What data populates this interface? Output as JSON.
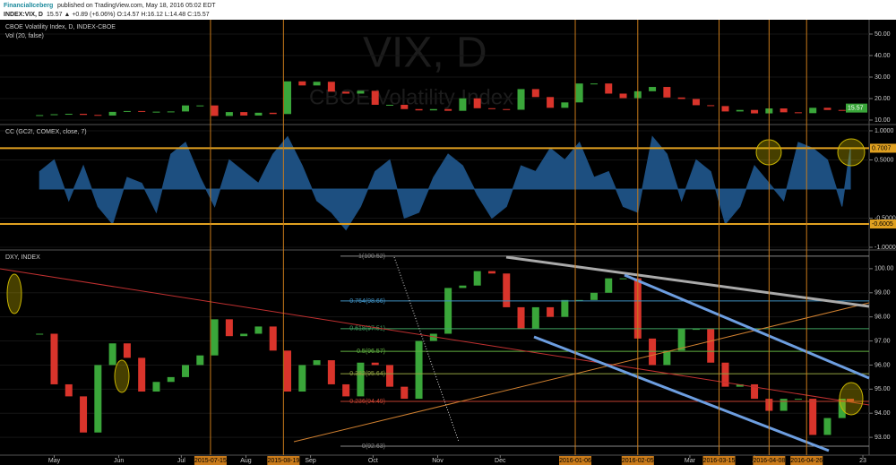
{
  "header": {
    "brand": "FinancialIceberg",
    "published": "published on TradingView.com, May 18, 2016 05:02 EDT",
    "symbol": "INDEX:VIX, D",
    "quote": "15.57 ▲ +0.89 (+6.06%) O:14.57 H:16.12 L:14.48 C:15.57"
  },
  "chart_data": [
    {
      "type": "candlestick",
      "title": "CBOE Volatility Index, D, INDEX-CBOE",
      "subtitle": "Vol (20, false)",
      "watermark": "VIX, D",
      "watermark_subtitle": "CBOE Volatility Index",
      "x": [
        "2015-04-24",
        "2015-05-01",
        "2015-05-08",
        "2015-05-15",
        "2015-05-22",
        "2015-05-29",
        "2015-06-05",
        "2015-06-12",
        "2015-06-19",
        "2015-06-26",
        "2015-07-03",
        "2015-07-10",
        "2015-07-17",
        "2015-07-24",
        "2015-07-31",
        "2015-08-07",
        "2015-08-14",
        "2015-08-21",
        "2015-08-28",
        "2015-09-04",
        "2015-09-11",
        "2015-09-18",
        "2015-09-25",
        "2015-10-02",
        "2015-10-09",
        "2015-10-16",
        "2015-10-23",
        "2015-10-30",
        "2015-11-06",
        "2015-11-13",
        "2015-11-20",
        "2015-11-27",
        "2015-12-04",
        "2015-12-11",
        "2015-12-18",
        "2015-12-25",
        "2016-01-01",
        "2016-01-08",
        "2016-01-15",
        "2016-01-22",
        "2016-01-29",
        "2016-02-05",
        "2016-02-12",
        "2016-02-19",
        "2016-02-26",
        "2016-03-04",
        "2016-03-11",
        "2016-03-18",
        "2016-03-25",
        "2016-04-01",
        "2016-04-08",
        "2016-04-15",
        "2016-04-22",
        "2016-04-29",
        "2016-05-06",
        "2016-05-13",
        "2016-05-17"
      ],
      "series": [
        {
          "name": "INDEX:VIX",
          "up_color": "#3aa63a",
          "down_color": "#d9342b",
          "values": [
            12.3,
            12.7,
            12.9,
            12.4,
            12.1,
            13.8,
            14.2,
            13.8,
            13.9,
            14.0,
            16.8,
            16.8,
            11.9,
            13.7,
            12.1,
            13.4,
            12.8,
            28.0,
            26.1,
            27.8,
            23.2,
            22.3,
            23.6,
            17.1,
            17.1,
            15.1,
            14.5,
            15.1,
            14.3,
            20.1,
            15.5,
            15.1,
            14.8,
            24.4,
            20.7,
            15.7,
            18.2,
            27.0,
            27.0,
            22.3,
            20.2,
            23.4,
            25.4,
            20.5,
            19.8,
            16.9,
            16.5,
            14.0,
            14.7,
            13.1,
            15.4,
            13.6,
            13.2,
            15.7,
            14.7,
            14.4,
            15.57
          ]
        }
      ],
      "ylim": [
        8.33,
        56.67
      ],
      "yticks": [
        {
          "value": 10,
          "label": "10.00"
        },
        {
          "value": 20,
          "label": "20.00"
        },
        {
          "value": 30,
          "label": "30.00"
        },
        {
          "value": 40,
          "label": "40.00"
        },
        {
          "value": 50,
          "label": "50.00"
        }
      ]
    },
    {
      "type": "area",
      "title": "CC (GC2!, COMEX, close, 7)",
      "series": [
        {
          "name": "CC",
          "color": "#1d4f80",
          "values": [
            0.3,
            0.5,
            -0.2,
            0.4,
            -0.3,
            -0.6,
            0.2,
            0.1,
            -0.4,
            0.6,
            0.8,
            0.2,
            -0.3,
            0.5,
            0.3,
            0.1,
            0.6,
            0.9,
            0.4,
            -0.2,
            -0.4,
            -0.7,
            -0.3,
            0.3,
            0.5,
            -0.5,
            -0.4,
            0.2,
            0.6,
            0.4,
            -0.1,
            -0.5,
            -0.3,
            0.4,
            0.3,
            0.7,
            0.5,
            0.8,
            0.2,
            0.3,
            -0.3,
            -0.4,
            0.9,
            0.6,
            -0.2,
            0.5,
            0.3,
            -0.6,
            -0.3,
            0.4,
            0.1,
            -0.2,
            0.8,
            0.7,
            0.5,
            -0.3,
            0.7007
          ]
        }
      ],
      "hlines": [
        0.7007,
        -0.6005
      ],
      "hline_color": "#e0a020",
      "ylim": [
        -1.031,
        1.092
      ],
      "yticks": [
        {
          "value": 1,
          "label": "1.0000"
        },
        {
          "value": 0.5,
          "label": "0.5000"
        },
        {
          "value": -0.5,
          "label": "-0.5000"
        },
        {
          "value": -1,
          "label": "-1.0000"
        }
      ]
    },
    {
      "type": "candlestick",
      "title": "DXY, INDEX",
      "series": [
        {
          "name": "DXY",
          "up_color": "#3aa63a",
          "down_color": "#d9342b",
          "values": [
            97.3,
            95.2,
            94.7,
            93.2,
            96.0,
            96.9,
            96.3,
            94.9,
            95.3,
            95.5,
            96.0,
            96.4,
            97.9,
            97.2,
            97.3,
            97.6,
            96.6,
            94.9,
            96.0,
            96.2,
            95.2,
            94.7,
            96.1,
            96.0,
            95.1,
            94.6,
            97.0,
            97.3,
            99.2,
            99.3,
            99.9,
            99.8,
            98.4,
            97.5,
            98.4,
            98.0,
            98.7,
            98.7,
            99.0,
            99.6,
            99.6,
            97.1,
            96.0,
            96.6,
            97.5,
            97.5,
            96.1,
            95.1,
            95.2,
            94.6,
            94.1,
            94.6,
            94.6,
            93.1,
            93.8,
            94.6,
            94.5
          ]
        }
      ],
      "fib": [
        {
          "value": 100.52,
          "label": "1(100.52)",
          "color": "#888888"
        },
        {
          "value": 98.66,
          "label": "0.764(98.66)",
          "color": "#3f8fc0"
        },
        {
          "value": 97.51,
          "label": "0.618(97.51)",
          "color": "#3fa060"
        },
        {
          "value": 96.57,
          "label": "0.5(96.57)",
          "color": "#5fb040"
        },
        {
          "value": 95.64,
          "label": "0.382(95.64)",
          "color": "#8fa040"
        },
        {
          "value": 94.49,
          "label": "0.236(94.49)",
          "color": "#c04030"
        },
        {
          "value": 92.63,
          "label": "0(92.63)",
          "color": "#888888"
        }
      ],
      "ylim": [
        92.26,
        100.74
      ],
      "yticks": [
        {
          "value": 93,
          "label": "93.00"
        },
        {
          "value": 94,
          "label": "94.00"
        },
        {
          "value": 95,
          "label": "95.00"
        },
        {
          "value": 96,
          "label": "96.00"
        },
        {
          "value": 97,
          "label": "97.00"
        },
        {
          "value": 98,
          "label": "98.00"
        },
        {
          "value": 99,
          "label": "99.00"
        },
        {
          "value": 100,
          "label": "100.00"
        }
      ],
      "xlim": [
        "2015-04-05",
        "2016-05-26"
      ],
      "xticks": [
        {
          "value": "2015-05-01",
          "label": "May"
        },
        {
          "value": "2015-06-01",
          "label": "Jun"
        },
        {
          "value": "2015-07-01",
          "label": "Jul"
        },
        {
          "value": "2015-08-01",
          "label": "Aug"
        },
        {
          "value": "2015-09-01",
          "label": "Sep"
        },
        {
          "value": "2015-10-01",
          "label": "Oct"
        },
        {
          "value": "2015-11-01",
          "label": "Nov"
        },
        {
          "value": "2015-12-01",
          "label": "Dec"
        },
        {
          "value": "2016-03-01",
          "label": "Mar"
        },
        {
          "value": "2016-04-01",
          "label": "A"
        },
        {
          "value": "2016-05-23",
          "label": "23"
        }
      ],
      "markers": [
        "2015-07-15",
        "2015-08-19",
        "2016-01-06",
        "2016-02-05",
        "2016-03-15",
        "2016-04-08",
        "2016-04-26"
      ],
      "marker_color": "#c87a1a"
    }
  ]
}
